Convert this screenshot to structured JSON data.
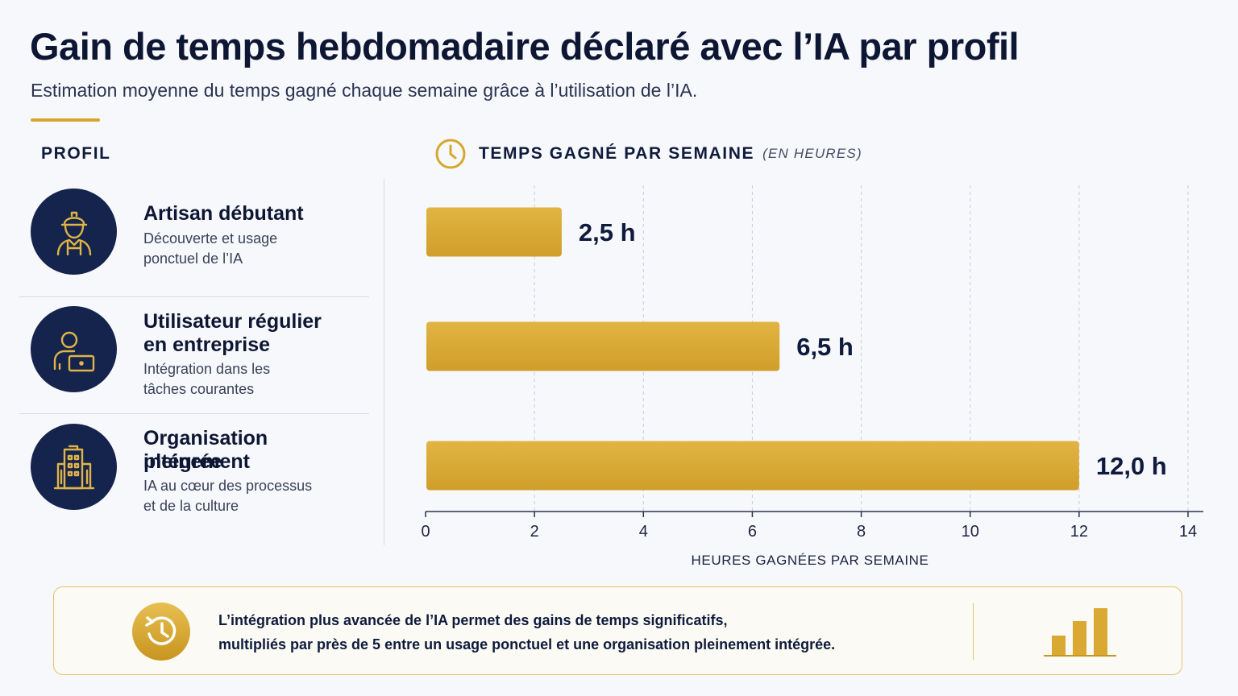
{
  "header": {
    "title": "Gain de temps hebdomadaire déclaré avec l’IA par profil",
    "subtitle": "Estimation moyenne du temps gagné chaque semaine grâce à l’utilisation de l’IA."
  },
  "columns": {
    "profile_label": "PROFIL",
    "chart_label": "TEMPS GAGNÉ PAR SEMAINE",
    "chart_unit": "(EN HEURES)"
  },
  "profiles": [
    {
      "name": "Artisan débutant",
      "desc_line1": "Découverte et usage",
      "desc_line2": "ponctuel de l’IA",
      "icon": "worker-icon"
    },
    {
      "name_line1": "Utilisateur régulier",
      "name_line2": "en entreprise",
      "desc_line1": "Intégration dans les",
      "desc_line2": "tâches courantes",
      "icon": "laptop-user-icon"
    },
    {
      "name_line1": "Organisation pleinement",
      "name_line2": "intégrée",
      "desc_line1": "IA au cœur des processus",
      "desc_line2": "et de la culture",
      "icon": "building-icon"
    }
  ],
  "chart_data": {
    "type": "bar",
    "orientation": "horizontal",
    "categories": [
      "Artisan débutant",
      "Utilisateur régulier en entreprise",
      "Organisation pleinement intégrée"
    ],
    "values": [
      2.5,
      6.5,
      12.0
    ],
    "value_labels": [
      "2,5 h",
      "6,5 h",
      "12,0 h"
    ],
    "xlabel": "HEURES GAGNÉES PAR SEMAINE",
    "xlim": [
      0,
      14
    ],
    "xticks": [
      0,
      2,
      4,
      6,
      8,
      10,
      12,
      14
    ],
    "grid": "vertical dashed",
    "bar_color": "#d9a934",
    "label_color": "#0f1b3d"
  },
  "callout": {
    "line1": "L’intégration plus avancée de l’IA permet des gains de temps significatifs,",
    "line2": "multipliés par près de 5 entre un usage ponctuel et une organisation pleinement intégrée."
  },
  "colors": {
    "accent": "#d6a72e",
    "navy": "#15244d",
    "background": "#f7f8fb"
  }
}
